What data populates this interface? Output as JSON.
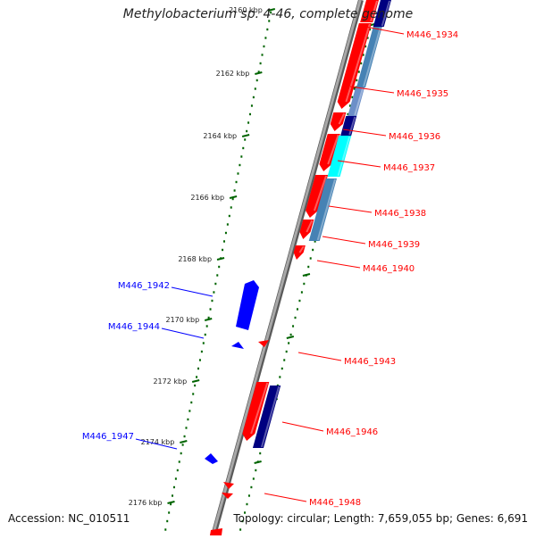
{
  "title": "Methylobacterium sp. 4-46, complete genome",
  "footer": {
    "accession": "Accession: NC_010511",
    "summary": "Topology: circular; Length: 7,659,055 bp; Genes: 6,691"
  },
  "colors": {
    "forward": "#ff0000",
    "reverse": "#0000ff",
    "navy": "#000080",
    "cyan": "#00ffff",
    "steel": "#4682b4",
    "tick": "#006400",
    "backbone": "#808080"
  },
  "ticks": [
    {
      "label": "2160 kbp"
    },
    {
      "label": "2162 kbp"
    },
    {
      "label": "2164 kbp"
    },
    {
      "label": "2166 kbp"
    },
    {
      "label": "2168 kbp"
    },
    {
      "label": "2170 kbp"
    },
    {
      "label": "2172 kbp"
    },
    {
      "label": "2174 kbp"
    },
    {
      "label": "2176 kbp"
    }
  ],
  "gene_labels_right": [
    {
      "text": "M446_1934"
    },
    {
      "text": "M446_1935"
    },
    {
      "text": "M446_1936"
    },
    {
      "text": "M446_1937"
    },
    {
      "text": "M446_1938"
    },
    {
      "text": "M446_1939"
    },
    {
      "text": "M446_1940"
    },
    {
      "text": "M446_1943"
    },
    {
      "text": "M446_1946"
    },
    {
      "text": "M446_1948"
    }
  ],
  "gene_labels_left": [
    {
      "text": "M446_1942"
    },
    {
      "text": "M446_1944"
    },
    {
      "text": "M446_1947"
    }
  ]
}
